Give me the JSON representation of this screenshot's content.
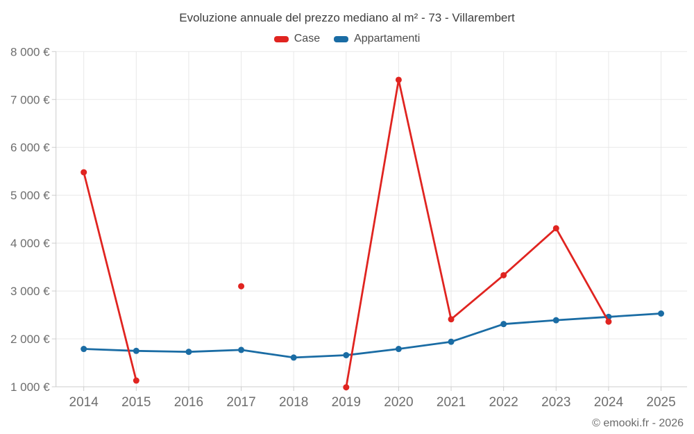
{
  "header": {
    "title": "Evoluzione annuale del prezzo mediano al m² - 73 - Villarembert"
  },
  "legend": [
    {
      "label": "Case",
      "color": "#e02420"
    },
    {
      "label": "Appartamenti",
      "color": "#1a6ca4"
    }
  ],
  "footer": {
    "credit": "© emooki.fr - 2026"
  },
  "colors": {
    "case_red": "#e02420",
    "appartamenti_blue": "#1a6ca4",
    "grid": "#e8e8e8",
    "axis": "#cccccc",
    "tick_text": "#6d6d6d",
    "title_text": "#3d3d3d"
  },
  "chart_data": {
    "type": "line",
    "title": "Evoluzione annuale del prezzo mediano al m² - 73 - Villarembert",
    "categories": [
      "2014",
      "2015",
      "2016",
      "2017",
      "2018",
      "2019",
      "2020",
      "2021",
      "2022",
      "2023",
      "2024",
      "2025"
    ],
    "series": [
      {
        "name": "Case",
        "color": "#e02420",
        "values": [
          5480,
          1130,
          null,
          3100,
          null,
          990,
          7410,
          2410,
          3330,
          4310,
          2360,
          null
        ]
      },
      {
        "name": "Appartamenti",
        "color": "#1a6ca4",
        "values": [
          1790,
          1750,
          1730,
          1770,
          1610,
          1660,
          1790,
          1940,
          2310,
          2390,
          2460,
          2530
        ]
      }
    ],
    "xlabel": "",
    "ylabel": "",
    "ylim": [
      1000,
      8000
    ],
    "y_tick_step": 1000,
    "y_tick_labels": [
      "1 000 €",
      "2 000 €",
      "3 000 €",
      "4 000 €",
      "5 000 €",
      "6 000 €",
      "7 000 €",
      "8 000 €"
    ],
    "grid": true,
    "legend_position": "top"
  }
}
